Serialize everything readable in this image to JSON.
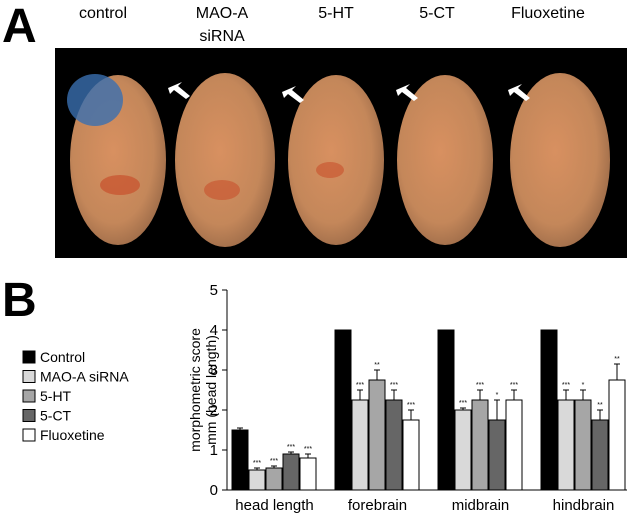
{
  "panel_a": {
    "label": "A",
    "columns": [
      [
        "control"
      ],
      [
        "MAO-A",
        "siRNA"
      ],
      [
        "5-HT"
      ],
      [
        "5-CT"
      ],
      [
        "Fluoxetine"
      ]
    ]
  },
  "panel_b": {
    "label": "B"
  },
  "chart_data": {
    "type": "bar",
    "y_label": [
      "morphometric score",
      "mm (head length)"
    ],
    "categories": [
      "head length",
      "forebrain",
      "midbrain",
      "hindbrain"
    ],
    "ylim": [
      0,
      5
    ],
    "yticks": [
      0,
      1,
      2,
      3,
      4,
      5
    ],
    "series": [
      {
        "name": "Control",
        "color": "#000000",
        "values": [
          1.5,
          4,
          4,
          4
        ],
        "errors": [
          0.05,
          0,
          0,
          0
        ],
        "significance": [
          null,
          null,
          null,
          null
        ]
      },
      {
        "name": "MAO-A siRNA",
        "color": "#d9d9d9",
        "values": [
          0.5,
          2.25,
          2,
          2.25
        ],
        "errors": [
          0.05,
          0.25,
          0.05,
          0.25
        ],
        "significance": [
          "***",
          "***",
          "***",
          "***"
        ]
      },
      {
        "name": "5-HT",
        "color": "#a6a6a6",
        "values": [
          0.55,
          2.75,
          2.25,
          2.25
        ],
        "errors": [
          0.05,
          0.25,
          0.25,
          0.25
        ],
        "significance": [
          "***",
          "**",
          "***",
          "*"
        ]
      },
      {
        "name": "5-CT",
        "color": "#666666",
        "values": [
          0.9,
          2.25,
          1.75,
          1.75
        ],
        "errors": [
          0.05,
          0.25,
          0.5,
          0.25
        ],
        "significance": [
          "***",
          "***",
          "*",
          "**"
        ]
      },
      {
        "name": "Fluoxetine",
        "color": "#ffffff",
        "values": [
          0.8,
          1.75,
          2.25,
          2.75
        ],
        "errors": [
          0.1,
          0.25,
          0.25,
          0.4
        ],
        "significance": [
          "***",
          "***",
          "***",
          "**"
        ]
      }
    ]
  }
}
